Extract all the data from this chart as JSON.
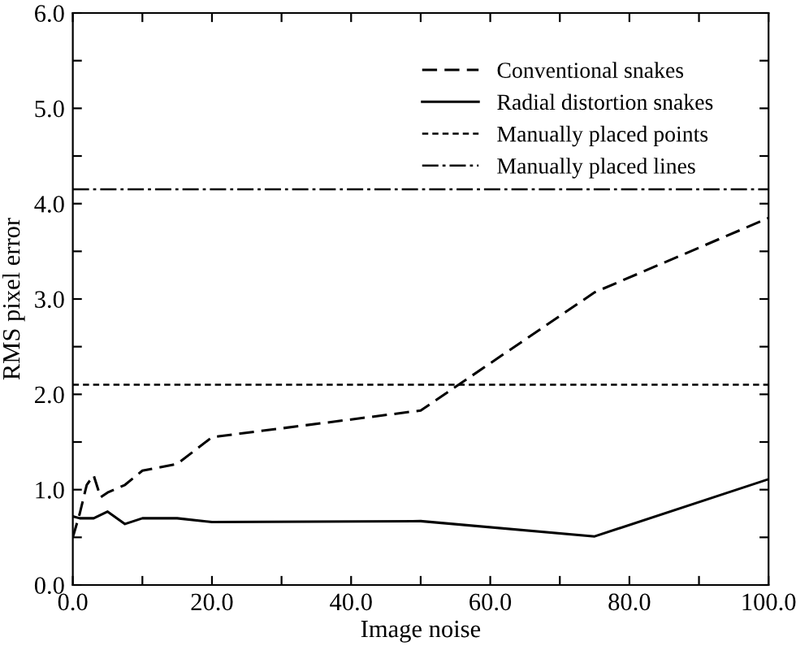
{
  "chart_data": {
    "type": "line",
    "xlabel": "Image noise",
    "ylabel": "RMS pixel error",
    "xlim": [
      0,
      100
    ],
    "ylim": [
      0,
      6
    ],
    "xticks": [
      {
        "value": 0,
        "label": "0.0"
      },
      {
        "value": 10,
        "label": null
      },
      {
        "value": 20,
        "label": "20.0"
      },
      {
        "value": 30,
        "label": null
      },
      {
        "value": 40,
        "label": "40.0"
      },
      {
        "value": 50,
        "label": null
      },
      {
        "value": 60,
        "label": "60.0"
      },
      {
        "value": 70,
        "label": null
      },
      {
        "value": 80,
        "label": "80.0"
      },
      {
        "value": 90,
        "label": null
      },
      {
        "value": 100,
        "label": "100.0"
      }
    ],
    "yticks": [
      {
        "value": 0,
        "label": "0.0"
      },
      {
        "value": 0.5,
        "label": null
      },
      {
        "value": 1,
        "label": "1.0"
      },
      {
        "value": 1.5,
        "label": null
      },
      {
        "value": 2,
        "label": "2.0"
      },
      {
        "value": 2.5,
        "label": null
      },
      {
        "value": 3,
        "label": "3.0"
      },
      {
        "value": 3.5,
        "label": null
      },
      {
        "value": 4,
        "label": "4.0"
      },
      {
        "value": 4.5,
        "label": null
      },
      {
        "value": 5,
        "label": "5.0"
      },
      {
        "value": 5.5,
        "label": null
      },
      {
        "value": 6,
        "label": "6.0"
      }
    ],
    "series": [
      {
        "name": "Conventional snakes",
        "color": "#000000",
        "line_style": "dashed",
        "x": [
          0,
          1,
          2,
          3,
          4,
          5,
          7.5,
          10,
          15,
          20,
          50,
          75,
          100
        ],
        "values": [
          0.5,
          0.75,
          1.05,
          1.15,
          0.92,
          0.97,
          1.05,
          1.2,
          1.27,
          1.55,
          1.83,
          3.07,
          3.85
        ]
      },
      {
        "name": "Radial distortion snakes",
        "color": "#000000",
        "line_style": "solid",
        "x": [
          0,
          1,
          3,
          5,
          7.5,
          10,
          15,
          20,
          50,
          75,
          100
        ],
        "values": [
          0.72,
          0.7,
          0.7,
          0.77,
          0.64,
          0.7,
          0.7,
          0.66,
          0.67,
          0.51,
          1.11
        ]
      }
    ],
    "ref_lines": [
      {
        "axis": "y",
        "value": 2.1,
        "label": "Manually placed points",
        "color": "#000000",
        "line_style": "dotted"
      },
      {
        "axis": "y",
        "value": 4.15,
        "label": "Manually placed lines",
        "color": "#000000",
        "line_style": "dashdot"
      }
    ],
    "legend": "top right",
    "grid": false,
    "marker": "none"
  }
}
